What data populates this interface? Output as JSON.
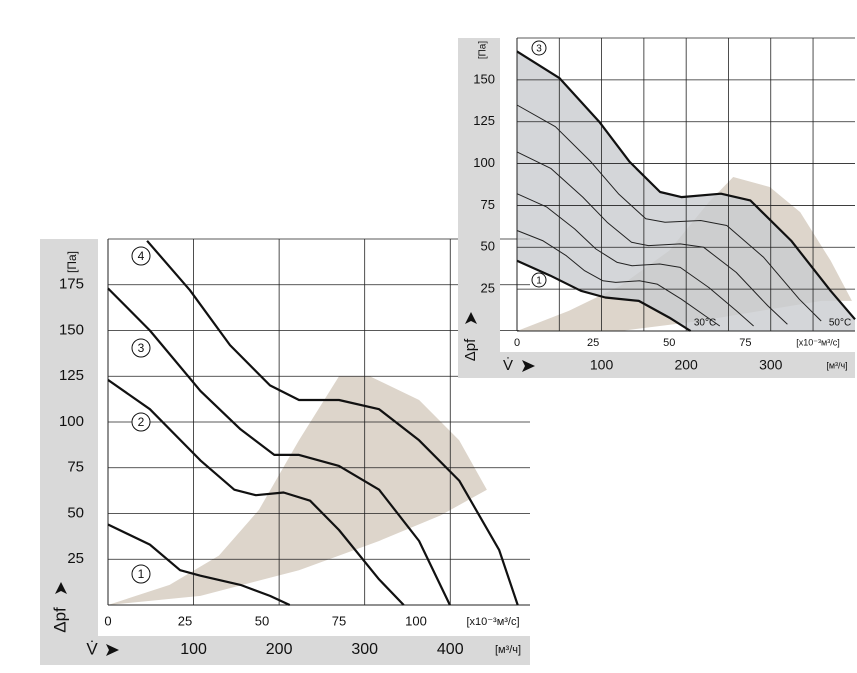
{
  "chart_data": [
    {
      "type": "line",
      "y_label": "Δpf",
      "y_unit": "[Па]",
      "x_label": "V̇",
      "x_unit": "[x10⁻³м³/с]",
      "x2_unit": "[м³/ч]",
      "xlim": [
        0,
        137
      ],
      "xticks": [
        0,
        25,
        50,
        75,
        100
      ],
      "x2lim": [
        0,
        493.2
      ],
      "x2ticks": [
        100,
        200,
        300,
        400
      ],
      "x2grid": [
        100,
        200,
        300,
        400
      ],
      "ylim": [
        0,
        200
      ],
      "yticks": [
        25,
        50,
        75,
        100,
        125,
        150,
        175
      ],
      "grid": true,
      "shaded_region": {
        "color": "#ddd5cb",
        "x": [
          0,
          20,
          36,
          49,
          62,
          75,
          85,
          101,
          114,
          123,
          108,
          88,
          62,
          30
        ],
        "y": [
          0,
          11,
          27,
          52,
          90,
          125,
          125,
          112,
          90,
          63,
          49,
          35,
          19,
          5
        ]
      },
      "series": [
        {
          "name": "1",
          "color": "#111111",
          "x": [
            0,
            13.6,
            23.4,
            30,
            43,
            52.6,
            59
          ],
          "values": [
            44,
            33,
            19,
            16,
            11,
            5,
            0
          ]
        },
        {
          "name": "2",
          "color": "#111111",
          "x": [
            0,
            13.6,
            30,
            41,
            48,
            57,
            65.6,
            75,
            88,
            96
          ],
          "values": [
            123,
            107,
            79,
            63,
            60,
            61.5,
            57,
            41,
            14,
            0
          ]
        },
        {
          "name": "3",
          "color": "#111111",
          "x": [
            0,
            13.6,
            30,
            43,
            54,
            62,
            75,
            88,
            101,
            111
          ],
          "values": [
            173,
            150,
            117,
            96,
            82,
            82,
            76,
            63,
            35,
            0
          ]
        },
        {
          "name": "4",
          "color": "#111111",
          "x": [
            12.7,
            26.6,
            39.6,
            52.6,
            62,
            75,
            88,
            101,
            114,
            127,
            133
          ],
          "values": [
            199,
            172,
            142,
            120,
            112,
            112,
            107,
            90,
            68,
            30,
            0
          ]
        }
      ]
    },
    {
      "type": "line",
      "y_label": "Δpf",
      "y_unit": "[Па]",
      "x_label": "V̇",
      "x_unit": "[x10⁻³м³/с]",
      "x2_unit": "[м³/ч]",
      "xlim": [
        0,
        111
      ],
      "xticks": [
        0,
        25,
        50,
        75
      ],
      "x2lim": [
        0,
        399.6
      ],
      "x2ticks": [
        100,
        200,
        300
      ],
      "x2grid": [
        50,
        100,
        150,
        200,
        250,
        300,
        350
      ],
      "ylim": [
        0,
        175
      ],
      "yticks": [
        25,
        50,
        75,
        100,
        125,
        150
      ],
      "grid": true,
      "fill_color": "#c9ccd0",
      "annotations": [
        "30°C",
        "50°C"
      ],
      "shaded_region": {
        "color": "#ddd5cb",
        "x": [
          0,
          17,
          34,
          50,
          63,
          71,
          83,
          93,
          103,
          110,
          100,
          80,
          60,
          34
        ],
        "y": [
          0,
          12,
          27,
          48,
          77,
          92,
          86,
          71,
          42,
          18,
          18,
          12,
          6,
          0
        ]
      },
      "series": [
        {
          "name": "1",
          "color": "#111111",
          "x": [
            0,
            11,
            21,
            29,
            40,
            50,
            57
          ],
          "values": [
            42,
            33,
            24,
            20,
            18,
            8,
            0
          ]
        },
        {
          "color": "#222222",
          "x": [
            0,
            8.4,
            16.2,
            22.2,
            28.2,
            32.4,
            40.2,
            46,
            54,
            61.8,
            66.6
          ],
          "values": [
            60,
            54,
            45,
            36,
            30,
            29,
            30,
            28,
            19,
            9,
            3
          ]
        },
        {
          "color": "#222222",
          "x": [
            0,
            9.8,
            18.9,
            25.9,
            32.9,
            37.8,
            46.9,
            53.6,
            63,
            72.1,
            77.7
          ],
          "values": [
            82,
            74,
            61,
            49,
            41,
            39,
            40,
            38,
            26,
            12,
            3
          ]
        },
        {
          "color": "#222222",
          "x": [
            0,
            11.2,
            21.6,
            29.6,
            37.6,
            43.2,
            53.6,
            61.3,
            72,
            82.4,
            88.8
          ],
          "values": [
            107,
            97,
            80,
            65,
            53,
            51,
            52,
            50,
            35,
            15,
            4
          ]
        },
        {
          "color": "#222222",
          "x": [
            0,
            12.6,
            24.3,
            33.3,
            42.3,
            48.6,
            60.3,
            68.9,
            81,
            92.7,
            99.9
          ],
          "values": [
            135,
            122,
            101,
            82,
            67,
            65,
            66,
            63,
            44,
            19,
            6
          ]
        },
        {
          "name": "3",
          "color": "#111111",
          "x": [
            0,
            14,
            27,
            37,
            47,
            54,
            67,
            76.6,
            90,
            103,
            111
          ],
          "values": [
            167,
            151,
            125,
            101,
            83,
            80,
            82,
            78,
            54,
            24,
            7
          ]
        }
      ]
    }
  ]
}
